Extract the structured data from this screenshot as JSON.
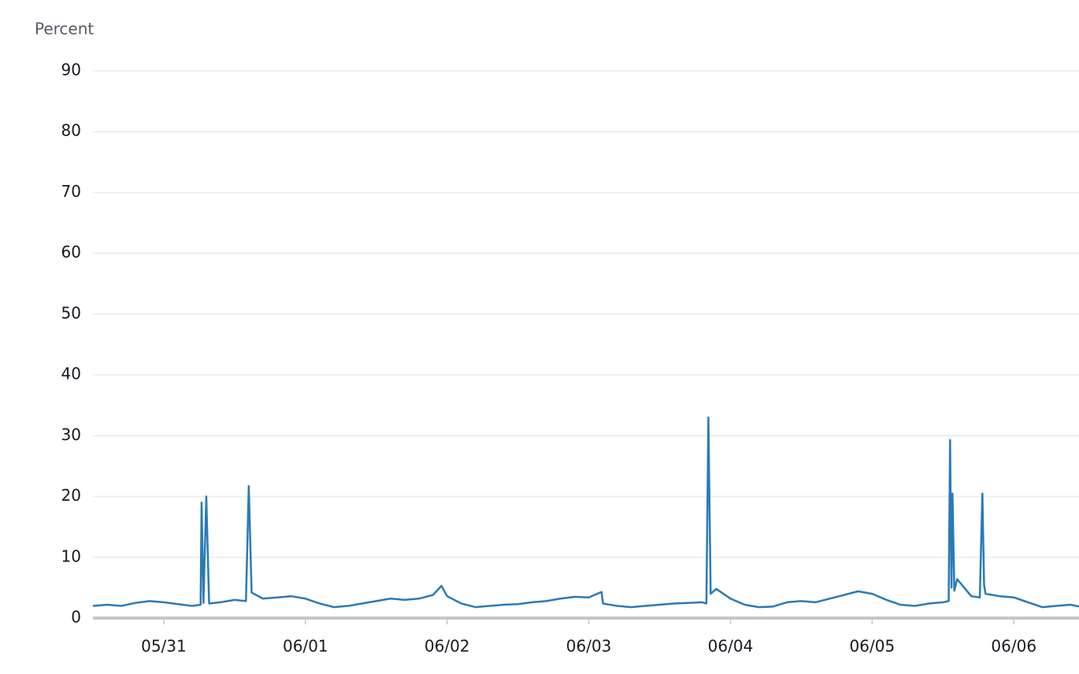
{
  "chart_data": {
    "type": "line",
    "y_label": "Percent",
    "x": [
      -0.5,
      -0.4,
      -0.3,
      -0.2,
      -0.1,
      0,
      0.1,
      0.2,
      0.26,
      0.267,
      0.28,
      0.3,
      0.32,
      0.4,
      0.5,
      0.58,
      0.6,
      0.62,
      0.7,
      0.8,
      0.9,
      1.0,
      1.1,
      1.2,
      1.3,
      1.4,
      1.5,
      1.6,
      1.7,
      1.8,
      1.9,
      1.96,
      2.0,
      2.1,
      2.2,
      2.3,
      2.4,
      2.5,
      2.6,
      2.7,
      2.8,
      2.9,
      3.0,
      3.09,
      3.1,
      3.2,
      3.3,
      3.4,
      3.5,
      3.6,
      3.7,
      3.8,
      3.83,
      3.844,
      3.86,
      3.9,
      4.0,
      4.1,
      4.2,
      4.3,
      4.4,
      4.5,
      4.6,
      4.7,
      4.8,
      4.9,
      5.0,
      5.1,
      5.2,
      5.3,
      5.4,
      5.5,
      5.54,
      5.55,
      5.56,
      5.567,
      5.58,
      5.6,
      5.7,
      5.76,
      5.778,
      5.79,
      5.8,
      5.9,
      6.0,
      6.1,
      6.2,
      6.3,
      6.4,
      6.46
    ],
    "series": [
      {
        "color": "#2a7ab8",
        "values": [
          2.0,
          2.2,
          2.0,
          2.5,
          2.8,
          2.6,
          2.3,
          2.0,
          2.2,
          19,
          2.5,
          20,
          2.4,
          2.6,
          3.0,
          2.8,
          21.7,
          4.2,
          3.2,
          3.4,
          3.6,
          3.2,
          2.4,
          1.8,
          2.0,
          2.4,
          2.8,
          3.2,
          3.0,
          3.2,
          3.8,
          5.3,
          3.6,
          2.4,
          1.8,
          2.0,
          2.2,
          2.3,
          2.6,
          2.8,
          3.2,
          3.5,
          3.4,
          4.3,
          2.4,
          2.0,
          1.8,
          2.0,
          2.2,
          2.4,
          2.5,
          2.6,
          2.4,
          33,
          4.0,
          4.8,
          3.2,
          2.2,
          1.8,
          1.9,
          2.6,
          2.8,
          2.6,
          3.2,
          3.8,
          4.4,
          4.0,
          3.0,
          2.2,
          2.0,
          2.4,
          2.6,
          2.8,
          29.3,
          5.0,
          20.5,
          4.5,
          6.4,
          3.6,
          3.4,
          20.5,
          5.5,
          4.0,
          3.6,
          3.4,
          2.6,
          1.8,
          2.0,
          2.2,
          1.9
        ]
      }
    ],
    "xlim": [
      -0.5,
      6.46
    ],
    "xticks": [
      {
        "value": 0,
        "label": "05/31"
      },
      {
        "value": 1,
        "label": "06/01"
      },
      {
        "value": 2,
        "label": "06/02"
      },
      {
        "value": 3,
        "label": "06/03"
      },
      {
        "value": 4,
        "label": "06/04"
      },
      {
        "value": 5,
        "label": "06/05"
      },
      {
        "value": 6,
        "label": "06/06"
      }
    ],
    "ylim": [
      0,
      90
    ],
    "yticks": [
      0,
      10,
      20,
      30,
      40,
      50,
      60,
      70,
      80,
      90
    ],
    "grid": true
  }
}
